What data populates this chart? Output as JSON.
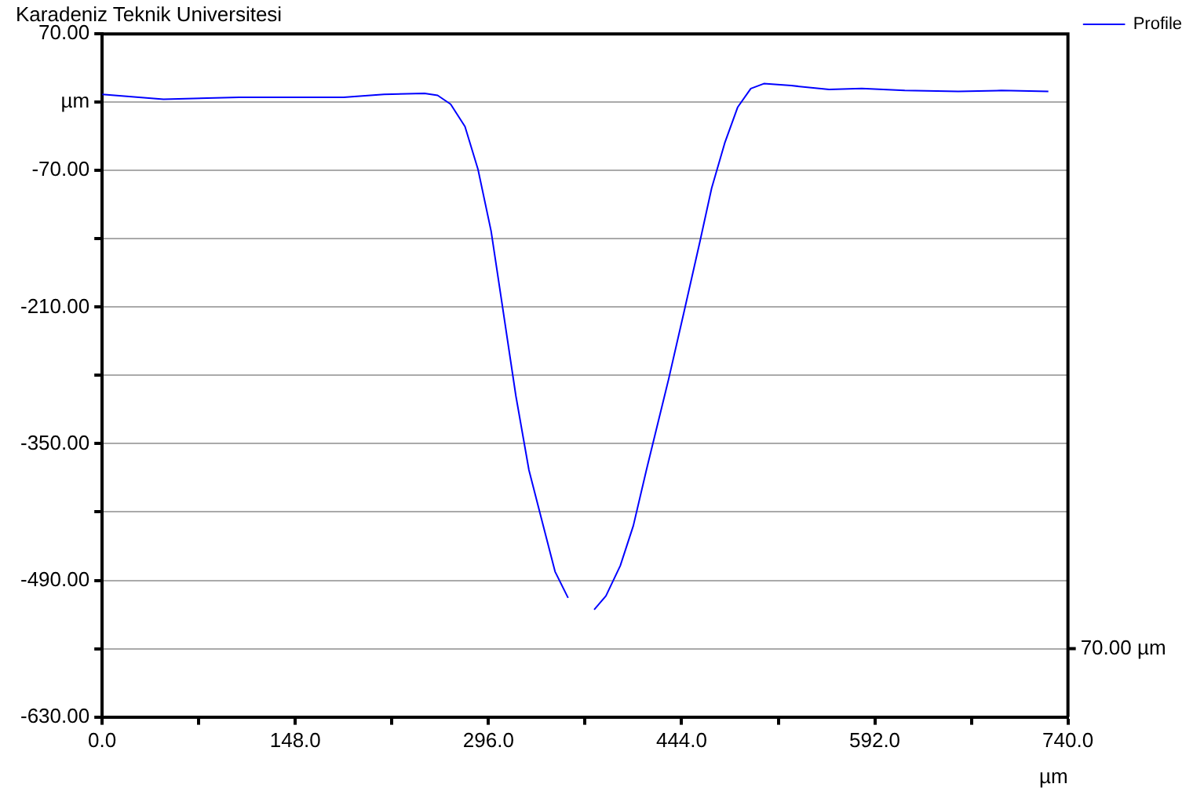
{
  "chart_data": {
    "type": "line",
    "title": "Karadeniz Teknik Universitesi",
    "xlabel": "µm",
    "x": [
      0,
      47,
      105,
      185,
      216,
      247,
      257,
      267,
      278,
      288,
      298,
      306,
      317,
      327,
      337,
      347,
      357,
      367,
      377,
      386,
      397,
      407,
      417,
      434,
      446,
      458,
      467,
      477,
      487,
      497,
      507,
      528,
      557,
      582,
      615,
      656,
      689,
      725
    ],
    "series": [
      {
        "name": "Profile",
        "color": "#0000ff",
        "values": [
          8,
          3,
          5,
          5,
          8,
          9,
          7,
          -2,
          -25,
          -69,
          -132,
          -203,
          -301,
          -377,
          -429,
          -481,
          -508,
          null,
          -520,
          -506,
          -475,
          -434,
          -377,
          -284,
          -214,
          -143,
          -88,
          -42,
          -5,
          14,
          19,
          17,
          13,
          14,
          12,
          11,
          12,
          11
        ]
      }
    ],
    "xlim": [
      0,
      740
    ],
    "xticks": [
      {
        "value": 0,
        "label": "0.0"
      },
      {
        "value": 74,
        "label": null
      },
      {
        "value": 148,
        "label": "148.0"
      },
      {
        "value": 222,
        "label": null
      },
      {
        "value": 296,
        "label": "296.0"
      },
      {
        "value": 370,
        "label": null
      },
      {
        "value": 444,
        "label": "444.0"
      },
      {
        "value": 518,
        "label": null
      },
      {
        "value": 592,
        "label": "592.0"
      },
      {
        "value": 666,
        "label": null
      },
      {
        "value": 740,
        "label": "740.0"
      }
    ],
    "ylim": [
      -630,
      70
    ],
    "yticks": [
      {
        "value": 70,
        "label": "70.00"
      },
      {
        "value": 0,
        "label": "µm"
      },
      {
        "value": -70,
        "label": "-70.00"
      },
      {
        "value": -140,
        "label": null
      },
      {
        "value": -210,
        "label": "-210.00"
      },
      {
        "value": -280,
        "label": null
      },
      {
        "value": -350,
        "label": "-350.00"
      },
      {
        "value": -420,
        "label": null
      },
      {
        "value": -490,
        "label": "-490.00"
      },
      {
        "value": -560,
        "label": null
      },
      {
        "value": -630,
        "label": "-630.00"
      }
    ],
    "annotations": [
      "70.00 µm"
    ],
    "grid": "y",
    "legend": "top right",
    "marker": "none",
    "line_style": "solid"
  }
}
